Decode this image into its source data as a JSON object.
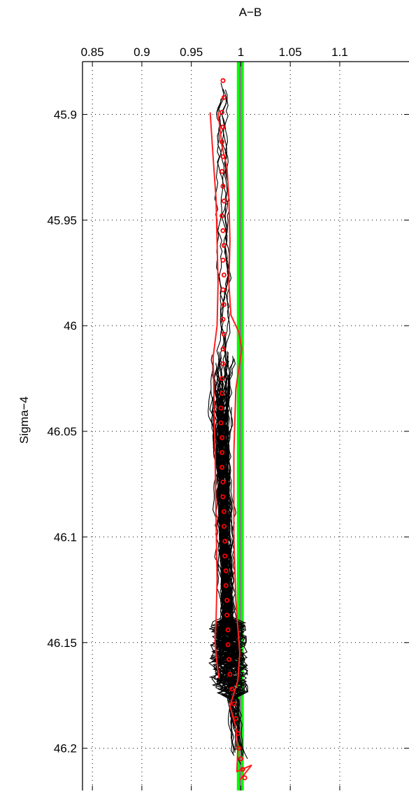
{
  "chart_data": {
    "type": "line",
    "title": "",
    "xlabel": "A−B",
    "ylabel": "Sigma−4",
    "xlim": [
      0.84,
      1.17
    ],
    "ylim": [
      45.875,
      46.22
    ],
    "y_reversed": true,
    "x_axis_position": "top",
    "grid": true,
    "grid_style": "dotted",
    "x_ticks": [
      0.85,
      0.9,
      0.95,
      1,
      1.05,
      1.1
    ],
    "x_tick_labels": [
      "0.85",
      "0.9",
      "0.95",
      "1",
      "1.05",
      "1.1"
    ],
    "y_ticks": [
      45.9,
      45.95,
      46,
      46.05,
      46.1,
      46.15,
      46.2
    ],
    "y_tick_labels": [
      "45.9",
      "45.95",
      "46",
      "46.05",
      "46.1",
      "46.15",
      "46.2"
    ],
    "colors": {
      "profiles": "#000000",
      "mean": "#ff0000",
      "envelope": "#ff2020",
      "reference_band": "#00ff00",
      "reference_line": "#808080"
    },
    "reference_band": {
      "x_min": 0.996,
      "x_max": 1.003
    },
    "reference_line": {
      "x": 0.9995
    },
    "mean_profile": {
      "name": "",
      "points": [
        {
          "x": 0.982,
          "y": 45.884
        },
        {
          "x": 0.983,
          "y": 45.892
        },
        {
          "x": 0.981,
          "y": 45.899
        },
        {
          "x": 0.982,
          "y": 45.906
        },
        {
          "x": 0.981,
          "y": 45.913
        },
        {
          "x": 0.982,
          "y": 45.92
        },
        {
          "x": 0.981,
          "y": 45.927
        },
        {
          "x": 0.982,
          "y": 45.934
        },
        {
          "x": 0.983,
          "y": 45.941
        },
        {
          "x": 0.981,
          "y": 45.948
        },
        {
          "x": 0.982,
          "y": 45.955
        },
        {
          "x": 0.983,
          "y": 45.962
        },
        {
          "x": 0.982,
          "y": 45.969
        },
        {
          "x": 0.983,
          "y": 45.976
        },
        {
          "x": 0.982,
          "y": 45.983
        },
        {
          "x": 0.983,
          "y": 45.99
        },
        {
          "x": 0.982,
          "y": 45.997
        },
        {
          "x": 0.983,
          "y": 46.004
        },
        {
          "x": 0.982,
          "y": 46.011
        },
        {
          "x": 0.982,
          "y": 46.018
        },
        {
          "x": 0.981,
          "y": 46.025
        },
        {
          "x": 0.981,
          "y": 46.032
        },
        {
          "x": 0.98,
          "y": 46.039
        },
        {
          "x": 0.98,
          "y": 46.046
        },
        {
          "x": 0.981,
          "y": 46.053
        },
        {
          "x": 0.981,
          "y": 46.06
        },
        {
          "x": 0.981,
          "y": 46.067
        },
        {
          "x": 0.982,
          "y": 46.074
        },
        {
          "x": 0.982,
          "y": 46.081
        },
        {
          "x": 0.983,
          "y": 46.088
        },
        {
          "x": 0.983,
          "y": 46.095
        },
        {
          "x": 0.984,
          "y": 46.102
        },
        {
          "x": 0.984,
          "y": 46.109
        },
        {
          "x": 0.985,
          "y": 46.116
        },
        {
          "x": 0.985,
          "y": 46.123
        },
        {
          "x": 0.986,
          "y": 46.13
        },
        {
          "x": 0.986,
          "y": 46.137
        },
        {
          "x": 0.987,
          "y": 46.144
        },
        {
          "x": 0.987,
          "y": 46.151
        },
        {
          "x": 0.988,
          "y": 46.158
        },
        {
          "x": 0.989,
          "y": 46.165
        },
        {
          "x": 0.991,
          "y": 46.172
        },
        {
          "x": 0.993,
          "y": 46.179
        },
        {
          "x": 0.995,
          "y": 46.186
        },
        {
          "x": 0.997,
          "y": 46.193
        },
        {
          "x": 0.998,
          "y": 46.2
        },
        {
          "x": 1.0,
          "y": 46.205
        },
        {
          "x": 1.002,
          "y": 46.21
        },
        {
          "x": 1.004,
          "y": 46.214
        }
      ]
    },
    "envelope_left": {
      "name": "",
      "points": [
        {
          "x": 0.969,
          "y": 45.899
        },
        {
          "x": 0.972,
          "y": 45.92
        },
        {
          "x": 0.975,
          "y": 45.94
        },
        {
          "x": 0.976,
          "y": 45.96
        },
        {
          "x": 0.977,
          "y": 45.98
        },
        {
          "x": 0.976,
          "y": 46.0
        },
        {
          "x": 0.972,
          "y": 46.015
        },
        {
          "x": 0.973,
          "y": 46.035
        },
        {
          "x": 0.974,
          "y": 46.06
        },
        {
          "x": 0.975,
          "y": 46.09
        },
        {
          "x": 0.976,
          "y": 46.12
        },
        {
          "x": 0.975,
          "y": 46.14
        },
        {
          "x": 0.974,
          "y": 46.15
        },
        {
          "x": 0.976,
          "y": 46.16
        },
        {
          "x": 0.978,
          "y": 46.167
        }
      ]
    },
    "envelope_right": {
      "name": "",
      "points": [
        {
          "x": 0.977,
          "y": 45.899
        },
        {
          "x": 0.981,
          "y": 45.915
        },
        {
          "x": 0.986,
          "y": 45.925
        },
        {
          "x": 0.988,
          "y": 45.94
        },
        {
          "x": 0.989,
          "y": 45.96
        },
        {
          "x": 0.988,
          "y": 45.98
        },
        {
          "x": 0.99,
          "y": 45.995
        },
        {
          "x": 0.998,
          "y": 46.003
        },
        {
          "x": 1.001,
          "y": 46.011
        },
        {
          "x": 0.995,
          "y": 46.03
        },
        {
          "x": 0.993,
          "y": 46.06
        },
        {
          "x": 0.993,
          "y": 46.1
        },
        {
          "x": 0.995,
          "y": 46.13
        },
        {
          "x": 0.999,
          "y": 46.155
        },
        {
          "x": 0.997,
          "y": 46.168
        },
        {
          "x": 0.989,
          "y": 46.18
        },
        {
          "x": 0.995,
          "y": 46.19
        },
        {
          "x": 0.997,
          "y": 46.2
        },
        {
          "x": 0.996,
          "y": 46.211
        },
        {
          "x": 1.011,
          "y": 46.208
        },
        {
          "x": 0.999,
          "y": 46.215
        }
      ]
    }
  }
}
